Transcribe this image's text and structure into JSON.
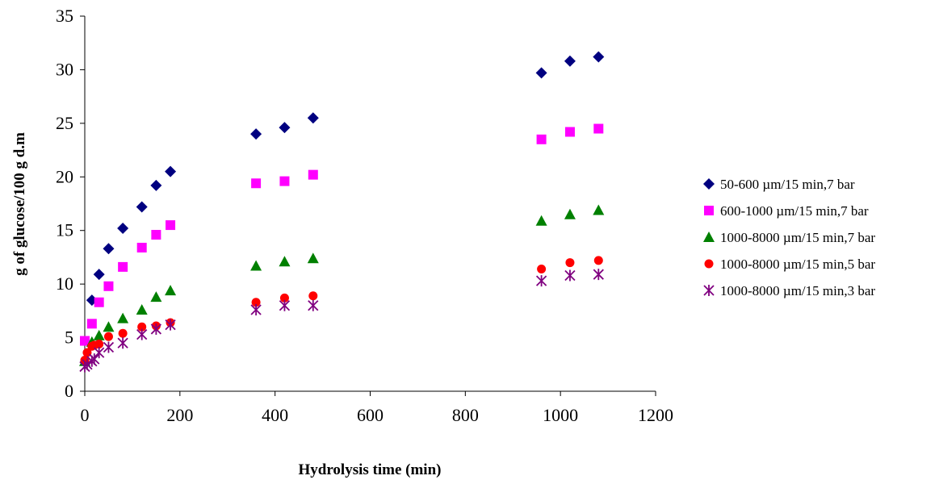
{
  "chart_data": {
    "type": "scatter",
    "title": "",
    "xlabel": "Hydrolysis time (min)",
    "ylabel": "g of glucose/100 g d.m",
    "xlim": [
      0,
      1200
    ],
    "ylim": [
      0,
      35
    ],
    "xticks": [
      0,
      200,
      400,
      600,
      800,
      1000,
      1200
    ],
    "yticks": [
      0,
      5,
      10,
      15,
      20,
      25,
      30,
      35
    ],
    "grid": false,
    "legend_position": "right",
    "series": [
      {
        "name": "50-600 µm/15 min,7 bar",
        "marker": "diamond",
        "color": "#000080",
        "x": [
          15,
          30,
          50,
          80,
          120,
          150,
          180,
          360,
          420,
          480,
          960,
          1020,
          1080
        ],
        "y": [
          8.5,
          10.9,
          13.3,
          15.2,
          17.2,
          19.2,
          20.5,
          24.0,
          24.6,
          25.5,
          29.7,
          30.8,
          31.2
        ]
      },
      {
        "name": "600-1000 µm/15 min,7 bar",
        "marker": "square",
        "color": "#ff00ff",
        "x": [
          0,
          15,
          30,
          50,
          80,
          120,
          150,
          180,
          360,
          420,
          480,
          960,
          1020,
          1080
        ],
        "y": [
          4.7,
          6.3,
          8.3,
          9.8,
          11.6,
          13.4,
          14.6,
          15.5,
          19.4,
          19.6,
          20.2,
          23.5,
          24.2,
          24.5
        ]
      },
      {
        "name": "1000-8000 µm/15 min,7 bar",
        "marker": "triangle",
        "color": "#008000",
        "x": [
          0,
          15,
          30,
          50,
          80,
          120,
          150,
          180,
          360,
          420,
          480,
          960,
          1020,
          1080
        ],
        "y": [
          2.8,
          4.6,
          5.2,
          6.0,
          6.8,
          7.6,
          8.8,
          9.4,
          11.7,
          12.1,
          12.4,
          15.9,
          16.5,
          16.9
        ]
      },
      {
        "name": "1000-8000 µm/15 min,5 bar",
        "marker": "circle",
        "color": "#ff0000",
        "x": [
          0,
          5,
          15,
          20,
          30,
          50,
          80,
          120,
          150,
          180,
          360,
          420,
          480,
          960,
          1020,
          1080
        ],
        "y": [
          2.9,
          3.6,
          4.2,
          4.3,
          4.4,
          5.1,
          5.4,
          6.0,
          6.1,
          6.4,
          8.3,
          8.7,
          8.9,
          11.4,
          12.0,
          12.2
        ]
      },
      {
        "name": "1000-8000 µm/15 min,3 bar",
        "marker": "asterisk",
        "color": "#800080",
        "x": [
          0,
          5,
          15,
          20,
          30,
          50,
          80,
          120,
          150,
          180,
          360,
          420,
          480,
          960,
          1020,
          1080
        ],
        "y": [
          2.3,
          2.5,
          2.8,
          3.0,
          3.6,
          4.1,
          4.5,
          5.3,
          5.8,
          6.2,
          7.6,
          8.0,
          8.0,
          10.3,
          10.8,
          10.9
        ]
      }
    ]
  }
}
